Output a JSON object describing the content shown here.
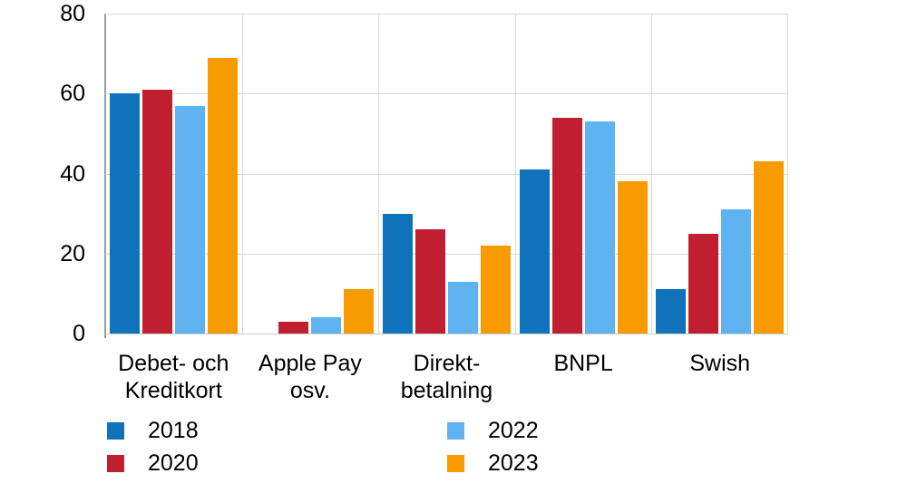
{
  "chart_data": {
    "type": "bar",
    "title": "",
    "categories": [
      "Debet- och Kreditkort",
      "Apple Pay osv.",
      "Direkt-betalning",
      "BNPL",
      "Swish"
    ],
    "category_label_lines": [
      [
        "Debet- och",
        "Kreditkort"
      ],
      [
        "Apple Pay osv."
      ],
      [
        "Direkt-",
        "betalning"
      ],
      [
        "BNPL"
      ],
      [
        "Swish"
      ]
    ],
    "series": [
      {
        "name": "2018",
        "color": "#0e73bb",
        "values": [
          60,
          0,
          30,
          41,
          11
        ]
      },
      {
        "name": "2020",
        "color": "#c01f31",
        "values": [
          61,
          3,
          26,
          54,
          25
        ]
      },
      {
        "name": "2022",
        "color": "#5eb3f0",
        "values": [
          57,
          4,
          13,
          53,
          31
        ]
      },
      {
        "name": "2023",
        "color": "#f79b00",
        "values": [
          69,
          11,
          22,
          38,
          43
        ]
      }
    ],
    "xlabel": "",
    "ylabel": "",
    "ylim": [
      0,
      80
    ],
    "yticks": [
      0,
      20,
      40,
      60,
      80
    ],
    "grid": {
      "horizontal": true,
      "vertical_category_separators": true
    },
    "legend": {
      "position": "bottom",
      "columns": [
        [
          "2018",
          "2020"
        ],
        [
          "2022",
          "2023"
        ]
      ]
    }
  },
  "colors": {
    "background": "#ffffff",
    "gridline": "#d9d9d9",
    "y_axis_line": "#9c9c9c",
    "baseline": "#c9c9c9",
    "text": "#000000"
  }
}
